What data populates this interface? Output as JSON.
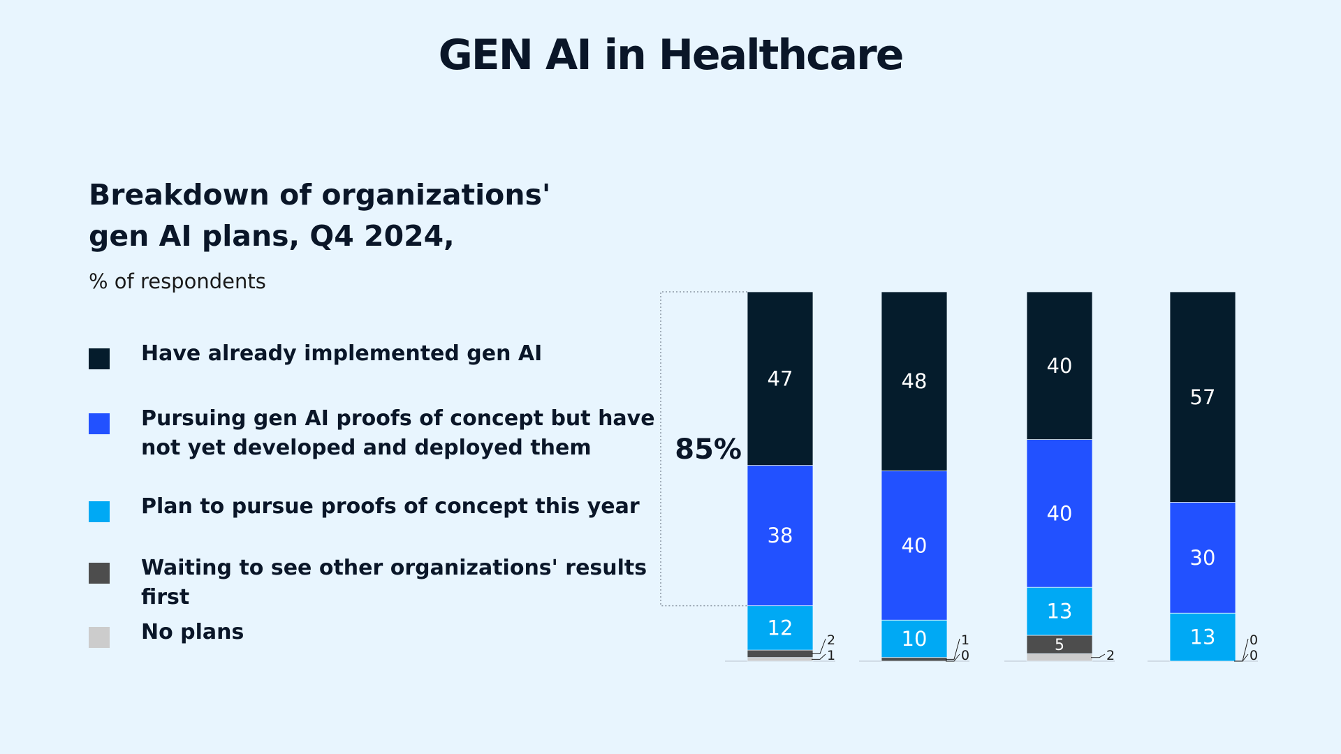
{
  "page": {
    "title": "GEN AI in Healthcare"
  },
  "chart_data": {
    "type": "bar",
    "stacked": true,
    "orientation": "vertical",
    "title": "Breakdown of  organizations' gen AI plans, Q4 2024,",
    "subtitle": "% of respondents",
    "categories": [
      "",
      "",
      "",
      ""
    ],
    "series": [
      {
        "name": "No plans",
        "color": "#cccccc",
        "values": [
          1,
          0,
          2,
          0
        ]
      },
      {
        "name": "Waiting to see other organizations' results first",
        "color": "#4d4d4d",
        "values": [
          2,
          1,
          5,
          0
        ]
      },
      {
        "name": "Plan to pursue proofs of concept this year",
        "color": "#00a9f4",
        "values": [
          12,
          10,
          13,
          13
        ]
      },
      {
        "name": "Pursuing gen AI proofs of concept but have not yet developed and deployed them",
        "color": "#2251ff",
        "values": [
          38,
          40,
          40,
          30
        ]
      },
      {
        "name": "Have already implemented gen AI",
        "color": "#051c2c",
        "values": [
          47,
          48,
          40,
          57
        ]
      }
    ],
    "annotations": [
      {
        "text": "85%",
        "applies_to_category_index": 0,
        "spans_series": [
          "Have already implemented gen AI",
          "Pursuing gen AI proofs of concept but have not yet developed and deployed them"
        ]
      }
    ],
    "legend_position": "left",
    "grid": false
  }
}
